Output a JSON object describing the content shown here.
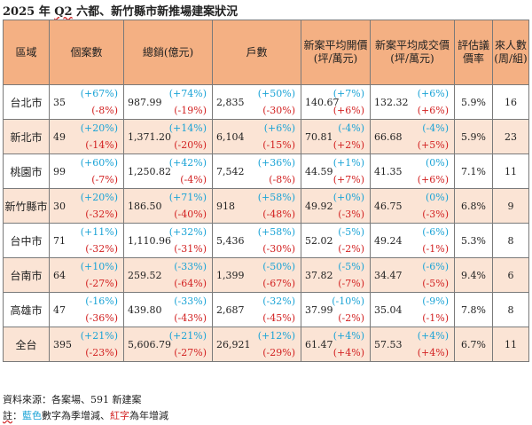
{
  "title_pre": "2025 年 ",
  "title_q": "Q2",
  "title_post": " 六都、新竹縣市新推場建案狀況",
  "headers": [
    "區域",
    "個案數",
    "總銷(億元)",
    "戶數",
    "新案平均開價(坪/萬元)",
    "新案平均成交價(坪/萬元)",
    "評估議價率",
    "來人數(周/組)"
  ],
  "rows": [
    {
      "region": "台北市",
      "cases": {
        "v": "35",
        "q": "(+67%)",
        "y": "(-8%)"
      },
      "sales": {
        "v": "987.99",
        "q": "(+74%)",
        "y": "(-19%)"
      },
      "units": {
        "v": "2,835",
        "q": "(+50%)",
        "y": "(-30%)"
      },
      "ask": {
        "v": "140.67",
        "q": "(+7%)",
        "y": "(+6%)"
      },
      "deal": {
        "v": "132.32",
        "q": "(+6%)",
        "y": "(+6%)"
      },
      "rate": "5.9%",
      "visitors": "16"
    },
    {
      "region": "新北市",
      "cases": {
        "v": "49",
        "q": "(+20%)",
        "y": "(-14%)"
      },
      "sales": {
        "v": "1,371.20",
        "q": "(+14%)",
        "y": "(-20%)"
      },
      "units": {
        "v": "6,104",
        "q": "(+6%)",
        "y": "(-15%)"
      },
      "ask": {
        "v": "70.81",
        "q": "(-4%)",
        "y": "(+2%)"
      },
      "deal": {
        "v": "66.68",
        "q": "(-4%)",
        "y": "(+5%)"
      },
      "rate": "5.9%",
      "visitors": "23"
    },
    {
      "region": "桃園市",
      "cases": {
        "v": "99",
        "q": "(+60%)",
        "y": "(-7%)"
      },
      "sales": {
        "v": "1,250.82",
        "q": "(+42%)",
        "y": "(-4%)"
      },
      "units": {
        "v": "7,542",
        "q": "(+36%)",
        "y": "(-8%)"
      },
      "ask": {
        "v": "44.59",
        "q": "(+1%)",
        "y": "(+7%)"
      },
      "deal": {
        "v": "41.35",
        "q": "(0%)",
        "y": "(+6%)"
      },
      "rate": "7.1%",
      "visitors": "11"
    },
    {
      "region": "新竹縣市",
      "cases": {
        "v": "30",
        "q": "(+20%)",
        "y": "(-32%)"
      },
      "sales": {
        "v": "186.50",
        "q": "(+71%)",
        "y": "(-40%)"
      },
      "units": {
        "v": "918",
        "q": "(+58%)",
        "y": "(-48%)"
      },
      "ask": {
        "v": "49.92",
        "q": "(+0%)",
        "y": "(-3%)"
      },
      "deal": {
        "v": "46.75",
        "q": "(0%)",
        "y": "(-3%)"
      },
      "rate": "6.8%",
      "visitors": "9"
    },
    {
      "region": "台中市",
      "cases": {
        "v": "71",
        "q": "(+11%)",
        "y": "(-32%)"
      },
      "sales": {
        "v": "1,110.96",
        "q": "(+32%)",
        "y": "(-31%)"
      },
      "units": {
        "v": "5,436",
        "q": "(+58%)",
        "y": "(-30%)"
      },
      "ask": {
        "v": "52.02",
        "q": "(-5%)",
        "y": "(-2%)"
      },
      "deal": {
        "v": "49.24",
        "q": "(-6%)",
        "y": "(-1%)"
      },
      "rate": "5.3%",
      "visitors": "8"
    },
    {
      "region": "台南市",
      "cases": {
        "v": "64",
        "q": "(+10%)",
        "y": "(-27%)"
      },
      "sales": {
        "v": "259.52",
        "q": "(-33%)",
        "y": "(-64%)"
      },
      "units": {
        "v": "1,399",
        "q": "(-50%)",
        "y": "(-67%)"
      },
      "ask": {
        "v": "37.82",
        "q": "(-5%)",
        "y": "(-7%)"
      },
      "deal": {
        "v": "34.47",
        "q": "(-6%)",
        "y": "(-5%)"
      },
      "rate": "9.4%",
      "visitors": "6"
    },
    {
      "region": "高雄市",
      "cases": {
        "v": "47",
        "q": "(-16%)",
        "y": "(-36%)"
      },
      "sales": {
        "v": "439.80",
        "q": "(-33%)",
        "y": "(-43%)"
      },
      "units": {
        "v": "2,687",
        "q": "(-32%)",
        "y": "(-45%)"
      },
      "ask": {
        "v": "37.99",
        "q": "(-10%)",
        "y": "(-2%)"
      },
      "deal": {
        "v": "35.04",
        "q": "(-9%)",
        "y": "(-1%)"
      },
      "rate": "7.8%",
      "visitors": "8"
    },
    {
      "region": "全台",
      "cases": {
        "v": "395",
        "q": "(+21%)",
        "y": "(-23%)"
      },
      "sales": {
        "v": "5,606.79",
        "q": "(+21%)",
        "y": "(-27%)"
      },
      "units": {
        "v": "26,921",
        "q": "(+12%)",
        "y": "(-29%)"
      },
      "ask": {
        "v": "61.47",
        "q": "(+4%)",
        "y": "(+4%)"
      },
      "deal": {
        "v": "57.53",
        "q": "(+4%)",
        "y": "(+4%)"
      },
      "rate": "6.7%",
      "visitors": "11"
    }
  ],
  "source": "資料來源：各案場、591 新建案",
  "note_a": "註",
  "note_b": "：",
  "note_blue": "藍色",
  "note_mid": "數字為季增減、",
  "note_red": "紅字",
  "note_end": "為年增減",
  "colors": {
    "header_bg": "#f4b083",
    "alt_row_bg": "#fbe4d5",
    "quarter_change": "#1aa3d6",
    "year_change": "#d22020"
  }
}
